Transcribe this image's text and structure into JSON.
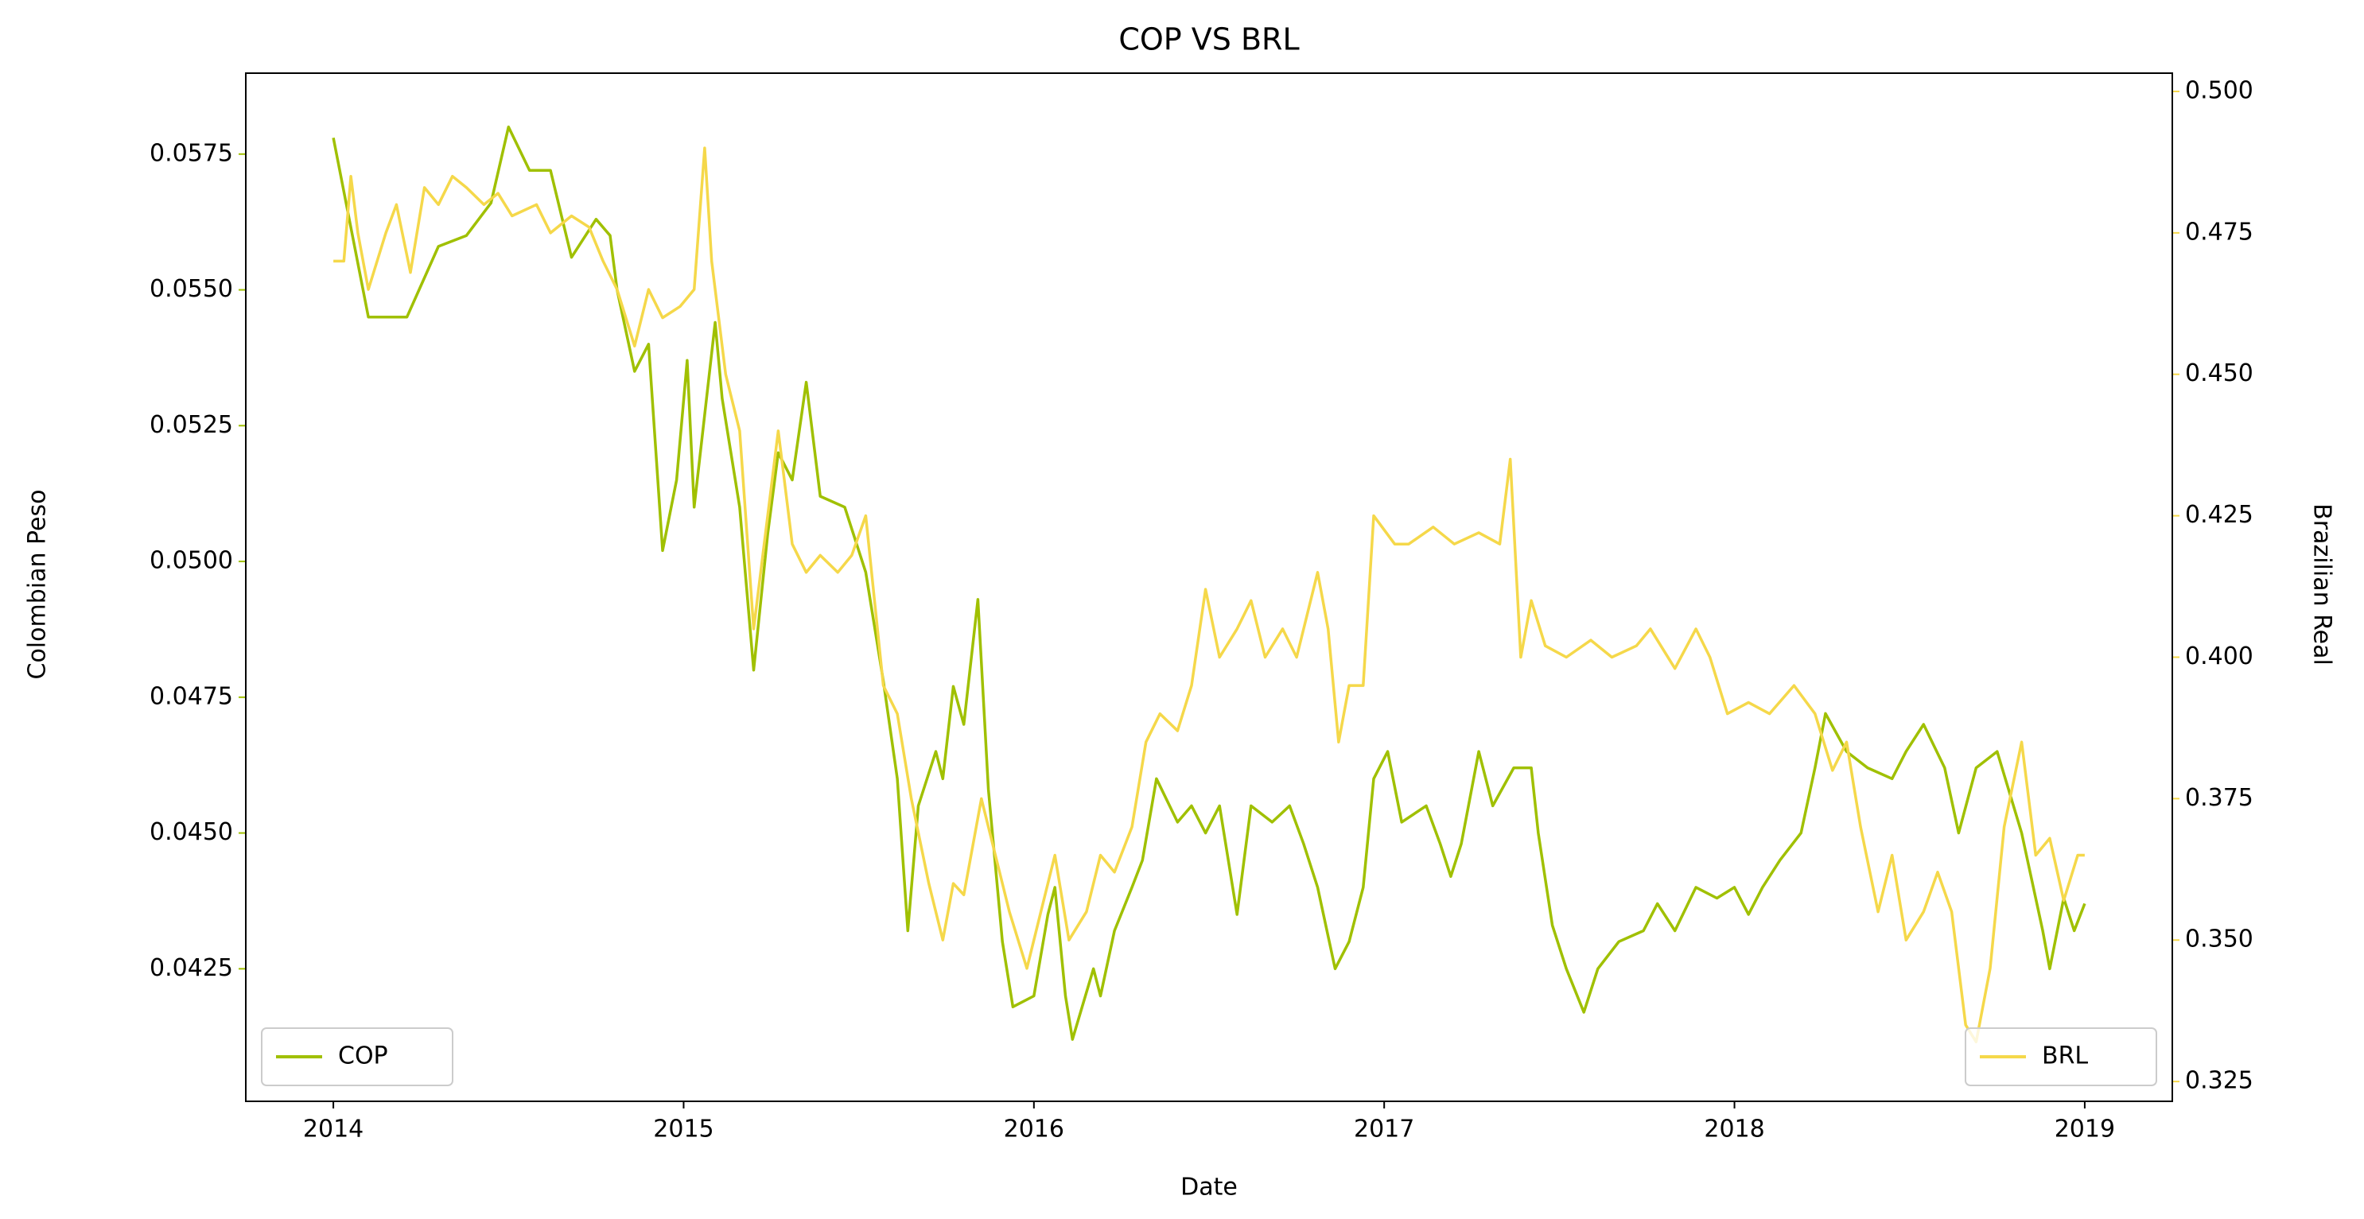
{
  "chart_data": {
    "type": "line",
    "title": "COP VS BRL",
    "xlabel": "Date",
    "ylabel": "Colombian Peso",
    "y2label": "Brazilian Real",
    "xlim": [
      2013.75,
      2019.25
    ],
    "xticks": [
      2014,
      2015,
      2016,
      2017,
      2018,
      2019
    ],
    "ylim": [
      0.04006,
      0.05899
    ],
    "yticks": [
      0.0425,
      {
        "value": 0.045,
        "label": "0.0450"
      },
      0.0475,
      {
        "value": 0.05,
        "label": "0.0500"
      },
      0.0525,
      {
        "value": 0.055,
        "label": "0.0550"
      },
      0.0575
    ],
    "y2lim": [
      0.3215,
      0.50323
    ],
    "y2ticks": [
      0.325,
      {
        "value": 0.35,
        "label": "0.350"
      },
      0.375,
      {
        "value": 0.4,
        "label": "0.400"
      },
      0.425,
      {
        "value": 0.45,
        "label": "0.450"
      },
      0.475,
      {
        "value": 0.5,
        "label": "0.500"
      }
    ],
    "series": [
      {
        "name": "COP",
        "color": "#a0c000",
        "axis": "y",
        "legend": "lower left",
        "x": [
          2014.0,
          2014.1,
          2014.21,
          2014.3,
          2014.38,
          2014.45,
          2014.5,
          2014.56,
          2014.62,
          2014.68,
          2014.75,
          2014.79,
          2014.81,
          2014.86,
          2014.9,
          2014.94,
          2014.98,
          2015.01,
          2015.03,
          2015.09,
          2015.11,
          2015.16,
          2015.2,
          2015.24,
          2015.27,
          2015.31,
          2015.35,
          2015.39,
          2015.46,
          2015.52,
          2015.57,
          2015.61,
          2015.64,
          2015.67,
          2015.72,
          2015.74,
          2015.77,
          2015.8,
          2015.84,
          2015.87,
          2015.91,
          2015.94,
          2016.0,
          2016.04,
          2016.06,
          2016.09,
          2016.11,
          2016.17,
          2016.19,
          2016.23,
          2016.28,
          2016.31,
          2016.35,
          2016.41,
          2016.45,
          2016.49,
          2016.53,
          2016.58,
          2016.62,
          2016.68,
          2016.73,
          2016.77,
          2016.81,
          2016.86,
          2016.9,
          2016.94,
          2016.97,
          2017.01,
          2017.05,
          2017.12,
          2017.16,
          2017.19,
          2017.22,
          2017.27,
          2017.31,
          2017.37,
          2017.42,
          2017.44,
          2017.48,
          2017.52,
          2017.57,
          2017.61,
          2017.67,
          2017.74,
          2017.78,
          2017.83,
          2017.89,
          2017.95,
          2018.0,
          2018.04,
          2018.08,
          2018.13,
          2018.19,
          2018.23,
          2018.26,
          2018.32,
          2018.38,
          2018.45,
          2018.49,
          2018.54,
          2018.6,
          2018.64,
          2018.69,
          2018.75,
          2018.82,
          2018.88,
          2018.9,
          2018.94,
          2018.97,
          2019.0
        ],
        "values": [
          0.0578,
          0.0545,
          0.0545,
          0.0558,
          0.056,
          0.0566,
          0.058,
          0.0572,
          0.0572,
          0.0556,
          0.0563,
          0.056,
          0.055,
          0.0535,
          0.054,
          0.0502,
          0.0515,
          0.0537,
          0.051,
          0.0544,
          0.053,
          0.051,
          0.048,
          0.0505,
          0.052,
          0.0515,
          0.0533,
          0.0512,
          0.051,
          0.0498,
          0.0478,
          0.046,
          0.0432,
          0.0455,
          0.0465,
          0.046,
          0.0477,
          0.047,
          0.0493,
          0.0458,
          0.043,
          0.0418,
          0.042,
          0.0435,
          0.044,
          0.042,
          0.0412,
          0.0425,
          0.042,
          0.0432,
          0.044,
          0.0445,
          0.046,
          0.0452,
          0.0455,
          0.045,
          0.0455,
          0.0435,
          0.0455,
          0.0452,
          0.0455,
          0.0448,
          0.044,
          0.0425,
          0.043,
          0.044,
          0.046,
          0.0465,
          0.0452,
          0.0455,
          0.0448,
          0.0442,
          0.0448,
          0.0465,
          0.0455,
          0.0462,
          0.0462,
          0.045,
          0.0433,
          0.0425,
          0.0417,
          0.0425,
          0.043,
          0.0432,
          0.0437,
          0.0432,
          0.044,
          0.0438,
          0.044,
          0.0435,
          0.044,
          0.0445,
          0.045,
          0.0462,
          0.0472,
          0.0465,
          0.0462,
          0.046,
          0.0465,
          0.047,
          0.0462,
          0.045,
          0.0462,
          0.0465,
          0.045,
          0.0432,
          0.0425,
          0.0438,
          0.0432,
          0.0437
        ]
      },
      {
        "name": "BRL",
        "color": "#f5d84a",
        "axis": "y2",
        "legend": "lower right",
        "x": [
          2014.0,
          2014.03,
          2014.05,
          2014.07,
          2014.1,
          2014.15,
          2014.18,
          2014.22,
          2014.26,
          2014.3,
          2014.34,
          2014.38,
          2014.43,
          2014.47,
          2014.51,
          2014.58,
          2014.62,
          2014.68,
          2014.73,
          2014.77,
          2014.81,
          2014.86,
          2014.9,
          2014.94,
          2014.99,
          2015.03,
          2015.06,
          2015.08,
          2015.12,
          2015.16,
          2015.2,
          2015.23,
          2015.27,
          2015.31,
          2015.35,
          2015.39,
          2015.44,
          2015.48,
          2015.52,
          2015.57,
          2015.61,
          2015.65,
          2015.7,
          2015.74,
          2015.77,
          2015.8,
          2015.85,
          2015.89,
          2015.93,
          2015.98,
          2016.02,
          2016.06,
          2016.1,
          2016.15,
          2016.19,
          2016.23,
          2016.28,
          2016.32,
          2016.36,
          2016.41,
          2016.45,
          2016.49,
          2016.53,
          2016.58,
          2016.62,
          2016.66,
          2016.71,
          2016.75,
          2016.81,
          2016.84,
          2016.87,
          2016.9,
          2016.94,
          2016.97,
          2017.03,
          2017.07,
          2017.14,
          2017.2,
          2017.27,
          2017.33,
          2017.36,
          2017.39,
          2017.42,
          2017.46,
          2017.52,
          2017.59,
          2017.65,
          2017.72,
          2017.76,
          2017.83,
          2017.89,
          2017.93,
          2017.98,
          2018.04,
          2018.1,
          2018.17,
          2018.23,
          2018.28,
          2018.32,
          2018.36,
          2018.41,
          2018.45,
          2018.49,
          2018.54,
          2018.58,
          2018.62,
          2018.66,
          2018.69,
          2018.73,
          2018.77,
          2018.82,
          2018.86,
          2018.9,
          2018.94,
          2018.98,
          2019.0
        ],
        "values": [
          0.47,
          0.47,
          0.485,
          0.475,
          0.465,
          0.475,
          0.48,
          0.468,
          0.483,
          0.48,
          0.485,
          0.483,
          0.48,
          0.482,
          0.478,
          0.48,
          0.475,
          0.478,
          0.476,
          0.47,
          0.465,
          0.455,
          0.465,
          0.46,
          0.462,
          0.465,
          0.49,
          0.47,
          0.45,
          0.44,
          0.405,
          0.42,
          0.44,
          0.42,
          0.415,
          0.418,
          0.415,
          0.418,
          0.425,
          0.395,
          0.39,
          0.375,
          0.36,
          0.35,
          0.36,
          0.358,
          0.375,
          0.365,
          0.355,
          0.345,
          0.355,
          0.365,
          0.35,
          0.355,
          0.365,
          0.362,
          0.37,
          0.385,
          0.39,
          0.387,
          0.395,
          0.412,
          0.4,
          0.405,
          0.41,
          0.4,
          0.405,
          0.4,
          0.415,
          0.405,
          0.385,
          0.395,
          0.395,
          0.425,
          0.42,
          0.42,
          0.423,
          0.42,
          0.422,
          0.42,
          0.435,
          0.4,
          0.41,
          0.402,
          0.4,
          0.403,
          0.4,
          0.402,
          0.405,
          0.398,
          0.405,
          0.4,
          0.39,
          0.392,
          0.39,
          0.395,
          0.39,
          0.38,
          0.385,
          0.37,
          0.355,
          0.365,
          0.35,
          0.355,
          0.362,
          0.355,
          0.335,
          0.332,
          0.345,
          0.37,
          0.385,
          0.365,
          0.368,
          0.357,
          0.365,
          0.365
        ]
      }
    ]
  }
}
